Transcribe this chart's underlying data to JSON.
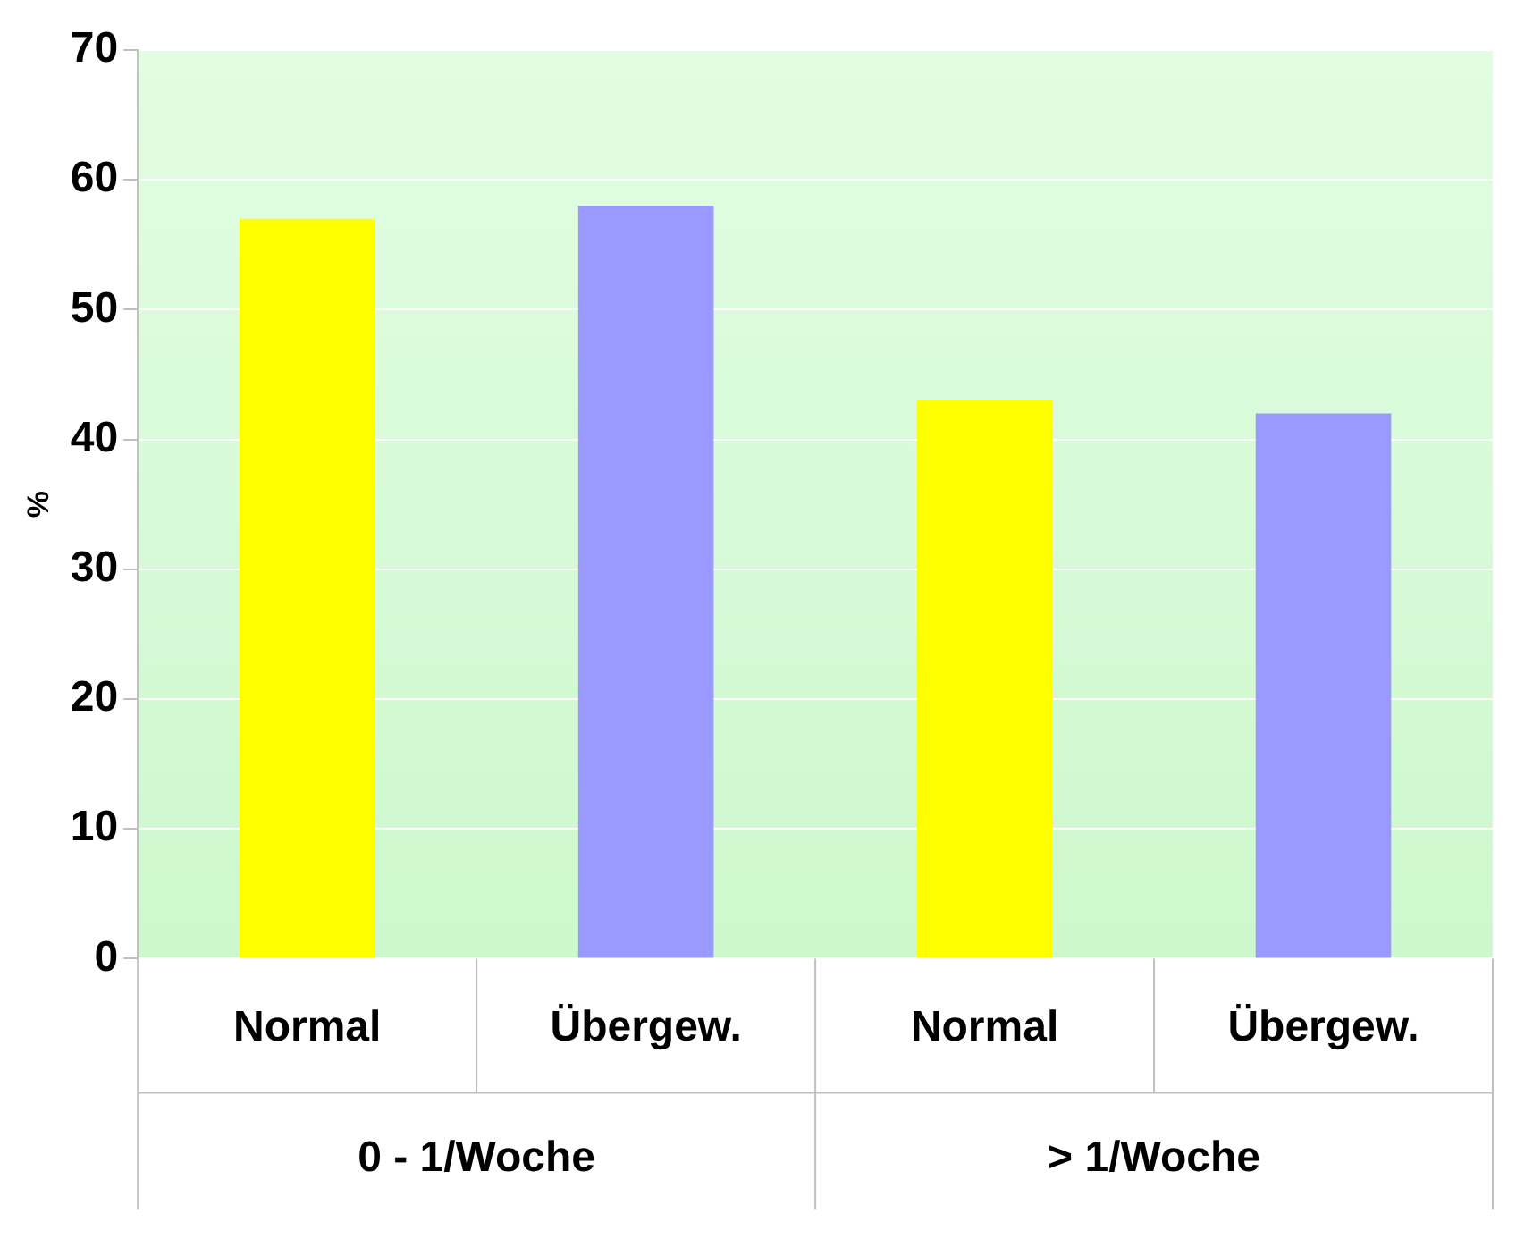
{
  "chart_data": {
    "type": "bar",
    "ylabel": "%",
    "categories": [
      "Normal",
      "Übergew.",
      "Normal",
      "Übergew."
    ],
    "values": [
      57,
      58,
      43,
      42
    ],
    "colors": [
      "#ffff00",
      "#9999ff",
      "#ffff00",
      "#9999ff"
    ],
    "ylim": [
      0,
      70
    ],
    "yticks": [
      0,
      10,
      20,
      30,
      40,
      50,
      60,
      70
    ],
    "grid": "y",
    "legend": false,
    "annotations": [
      "0 - 1/Woche",
      "> 1/Woche"
    ]
  }
}
